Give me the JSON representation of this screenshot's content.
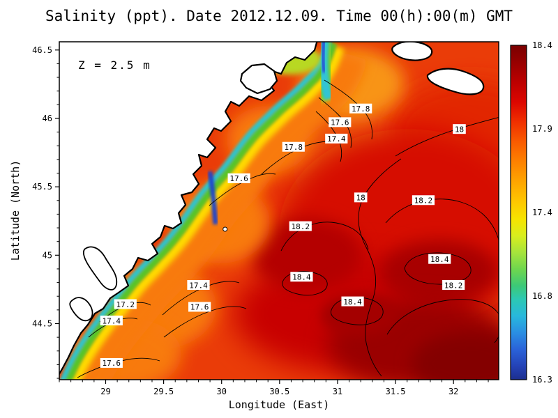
{
  "title": "Salinity (ppt). Date 2012.12.09. Time 00(h):00(m) GMT",
  "annotation": "Z = 2.5 m",
  "axes": {
    "x_label": "Longitude (East)",
    "y_label": "Latitude (North)"
  },
  "chart_data": {
    "type": "heatmap",
    "title": "Salinity (ppt). Date 2012.12.09. Time 00(h):00(m) GMT",
    "variable": "Salinity",
    "units": "ppt",
    "depth_annotation": "Z = 2.5 m",
    "date": "2012.12.09",
    "time_gmt": "00(h):00(m)",
    "xlabel": "Longitude (East)",
    "ylabel": "Latitude (North)",
    "xlim": [
      28.6,
      32.39
    ],
    "ylim": [
      44.09,
      46.56
    ],
    "x_ticks": [
      29,
      29.5,
      30,
      30.5,
      31,
      31.5,
      32
    ],
    "y_ticks": [
      44.5,
      45,
      45.5,
      46,
      46.5
    ],
    "grid": false,
    "legend_position": "right-colorbar",
    "colorbar": {
      "min": 16.3,
      "max": 18.4,
      "tick_labels": [
        "18.4",
        "17.9",
        "17.4",
        "16.8",
        "16.3"
      ],
      "stops": [
        {
          "at": 0.0,
          "color": "#7a0000"
        },
        {
          "at": 0.05,
          "color": "#960000"
        },
        {
          "at": 0.11,
          "color": "#bc0000"
        },
        {
          "at": 0.17,
          "color": "#dc0600"
        },
        {
          "at": 0.23,
          "color": "#f03000"
        },
        {
          "at": 0.29,
          "color": "#fa5c00"
        },
        {
          "at": 0.35,
          "color": "#fd8200"
        },
        {
          "at": 0.41,
          "color": "#fea600"
        },
        {
          "at": 0.47,
          "color": "#fec800"
        },
        {
          "at": 0.52,
          "color": "#f6e400"
        },
        {
          "at": 0.57,
          "color": "#d8ee1e"
        },
        {
          "at": 0.62,
          "color": "#a6e43c"
        },
        {
          "at": 0.67,
          "color": "#6ed64e"
        },
        {
          "at": 0.72,
          "color": "#3cc878"
        },
        {
          "at": 0.76,
          "color": "#2cc8b4"
        },
        {
          "at": 0.81,
          "color": "#28b8dc"
        },
        {
          "at": 0.86,
          "color": "#2a8ee2"
        },
        {
          "at": 0.91,
          "color": "#2a62d8"
        },
        {
          "at": 0.96,
          "color": "#2442b6"
        },
        {
          "at": 1.0,
          "color": "#1c2e8e"
        }
      ]
    },
    "contour_labels": [
      {
        "value": "17.8",
        "lon": 31.2,
        "lat": 46.07
      },
      {
        "value": "17.6",
        "lon": 31.02,
        "lat": 45.97
      },
      {
        "value": "17.4",
        "lon": 30.99,
        "lat": 45.85
      },
      {
        "value": "17.8",
        "lon": 30.62,
        "lat": 45.79
      },
      {
        "value": "17.6",
        "lon": 30.15,
        "lat": 45.56
      },
      {
        "value": "18",
        "lon": 32.05,
        "lat": 45.92
      },
      {
        "value": "18",
        "lon": 31.2,
        "lat": 45.42
      },
      {
        "value": "18.2",
        "lon": 31.74,
        "lat": 45.4
      },
      {
        "value": "18.2",
        "lon": 30.68,
        "lat": 45.21
      },
      {
        "value": "18.4",
        "lon": 31.88,
        "lat": 44.97
      },
      {
        "value": "18.4",
        "lon": 30.69,
        "lat": 44.84
      },
      {
        "value": "18.4",
        "lon": 31.13,
        "lat": 44.66
      },
      {
        "value": "18.2",
        "lon": 32.0,
        "lat": 44.78
      },
      {
        "value": "17.4",
        "lon": 29.8,
        "lat": 44.78
      },
      {
        "value": "17.2",
        "lon": 29.17,
        "lat": 44.64
      },
      {
        "value": "17.6",
        "lon": 29.81,
        "lat": 44.62
      },
      {
        "value": "17.4",
        "lon": 29.05,
        "lat": 44.52
      },
      {
        "value": "17.6",
        "lon": 29.05,
        "lat": 44.21
      }
    ],
    "marker": {
      "lon": 30.03,
      "lat": 45.19
    }
  }
}
